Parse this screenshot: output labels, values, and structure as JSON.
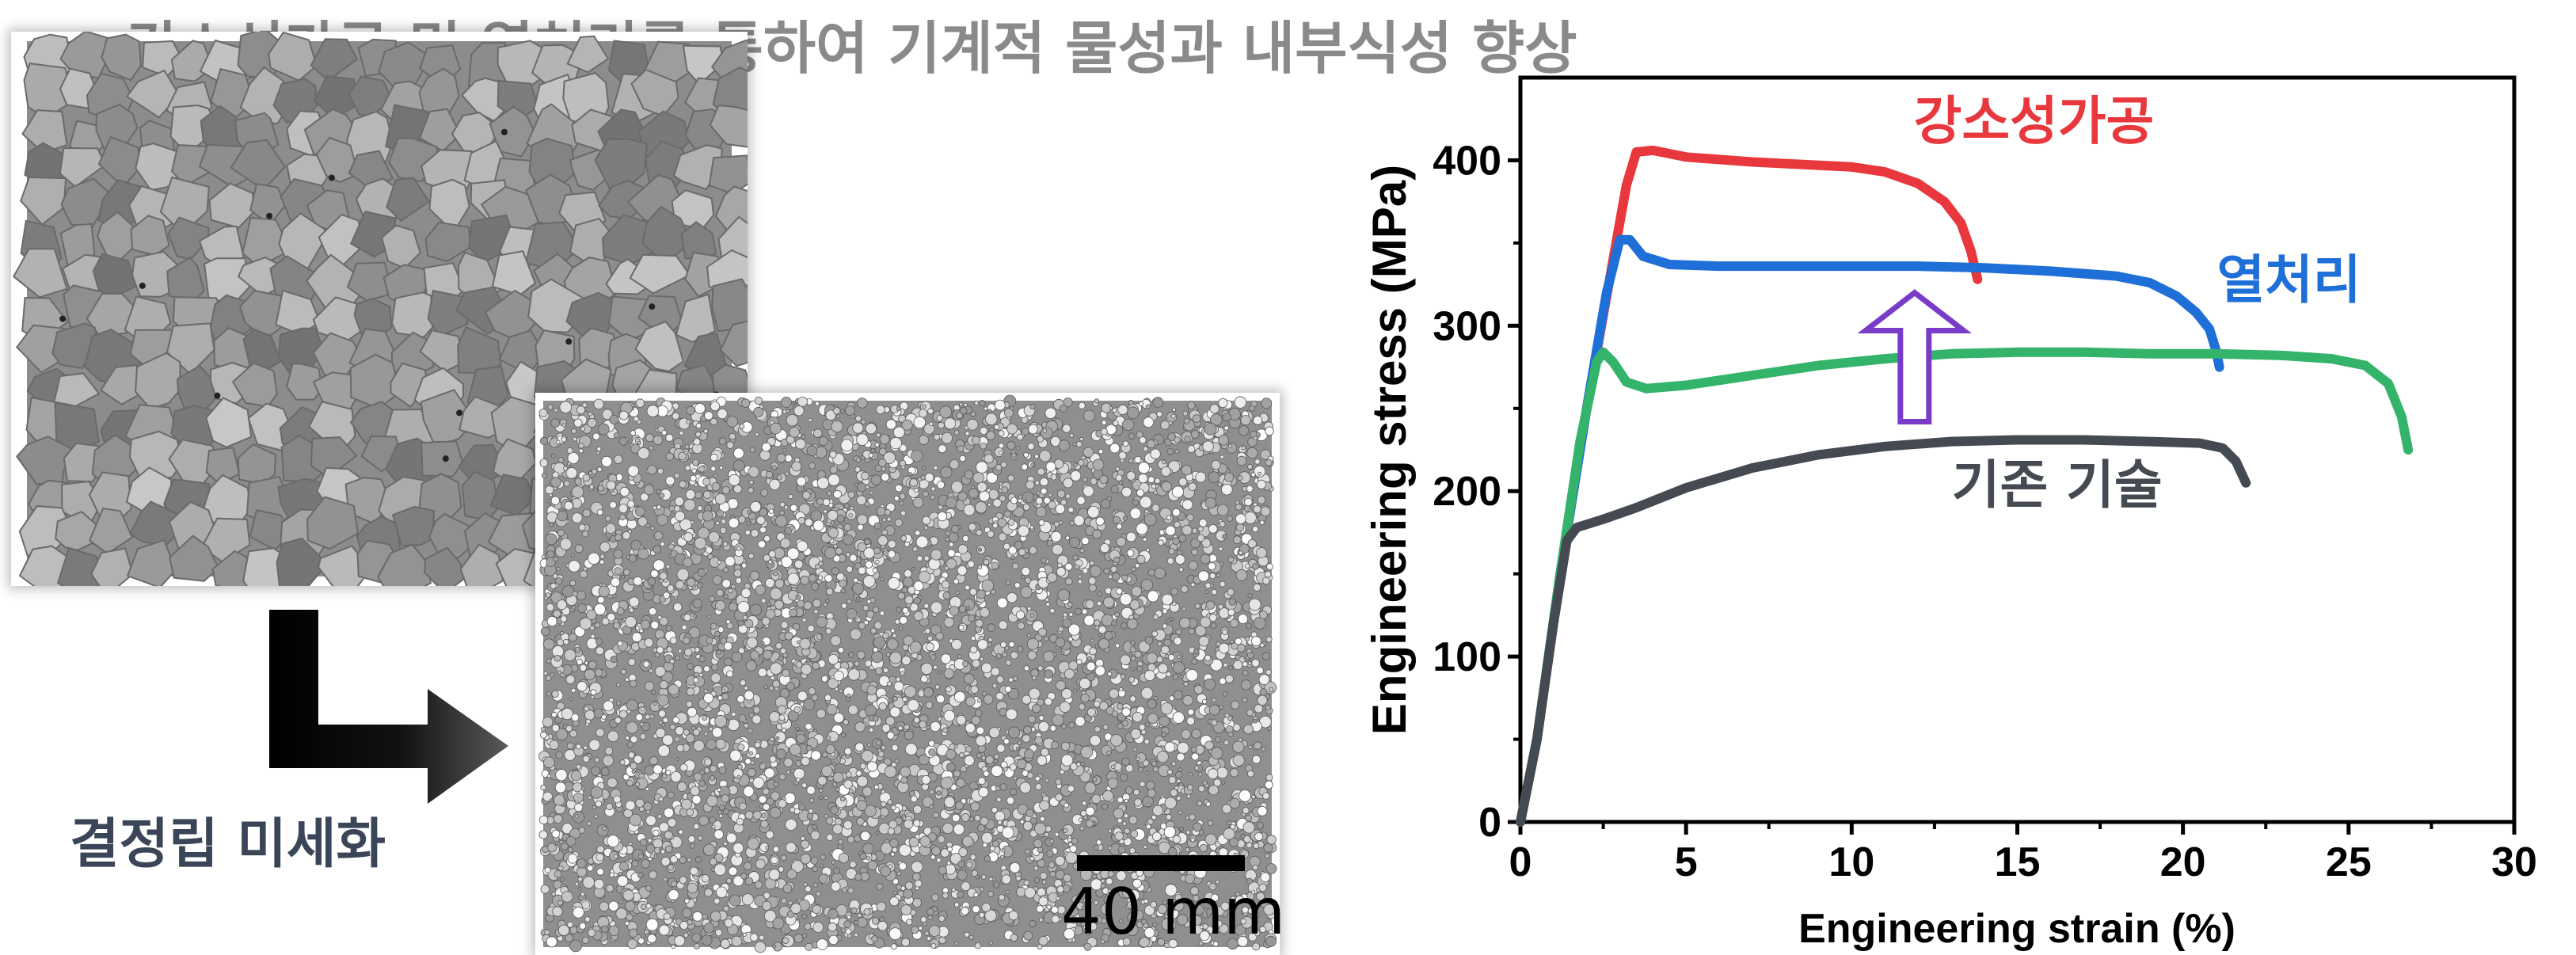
{
  "headline": "강소성가공 및 열처리를 통하여 기계적 물성과 내부식성 향상",
  "left_panel": {
    "refine_label": "결정립 미세화",
    "scale_bar_label": "40 mm"
  },
  "colors": {
    "headline": "#8a8a8a",
    "refine_label": "#3a4657",
    "spd": "#e8383d",
    "heat": "#1f6fd8",
    "mid": "#34b36a",
    "base": "#454a52",
    "up_arrow": "#7a3cc8"
  },
  "chart_data": {
    "type": "line",
    "xlabel": "Engineering strain (%)",
    "ylabel": "Engineering stress (MPa)",
    "xlim": [
      0,
      30
    ],
    "ylim": [
      0,
      450
    ],
    "xticks": [
      0,
      5,
      10,
      15,
      20,
      25,
      30
    ],
    "yticks": [
      0,
      100,
      200,
      300,
      400
    ],
    "grid": false,
    "series": [
      {
        "name": "강소성가공",
        "color": "#e8383d",
        "points": [
          [
            0,
            0
          ],
          [
            0.5,
            50
          ],
          [
            1.2,
            150
          ],
          [
            2.0,
            250
          ],
          [
            2.8,
            340
          ],
          [
            3.2,
            385
          ],
          [
            3.5,
            405
          ],
          [
            4,
            406
          ],
          [
            5,
            402
          ],
          [
            7,
            399
          ],
          [
            9,
            397
          ],
          [
            10,
            396
          ],
          [
            11,
            393
          ],
          [
            12,
            386
          ],
          [
            12.8,
            375
          ],
          [
            13.3,
            362
          ],
          [
            13.6,
            345
          ],
          [
            13.8,
            328
          ]
        ]
      },
      {
        "name": "열처리",
        "color": "#1f6fd8",
        "points": [
          [
            0,
            0
          ],
          [
            0.5,
            50
          ],
          [
            1.2,
            150
          ],
          [
            2.0,
            250
          ],
          [
            2.6,
            320
          ],
          [
            3.0,
            352
          ],
          [
            3.3,
            352
          ],
          [
            3.7,
            342
          ],
          [
            4.5,
            337
          ],
          [
            6,
            336
          ],
          [
            8,
            336
          ],
          [
            10,
            336
          ],
          [
            12,
            336
          ],
          [
            14,
            335
          ],
          [
            16,
            333
          ],
          [
            18,
            330
          ],
          [
            19,
            326
          ],
          [
            19.8,
            318
          ],
          [
            20.4,
            308
          ],
          [
            20.8,
            298
          ],
          [
            21.0,
            285
          ],
          [
            21.1,
            275
          ]
        ]
      },
      {
        "name": "",
        "color": "#34b36a",
        "points": [
          [
            0,
            0
          ],
          [
            0.5,
            50
          ],
          [
            1.2,
            150
          ],
          [
            1.8,
            230
          ],
          [
            2.3,
            278
          ],
          [
            2.5,
            284
          ],
          [
            2.8,
            278
          ],
          [
            3.2,
            266
          ],
          [
            3.8,
            262
          ],
          [
            5,
            264
          ],
          [
            7,
            270
          ],
          [
            9,
            276
          ],
          [
            11,
            280
          ],
          [
            13,
            283
          ],
          [
            15,
            284
          ],
          [
            17,
            284
          ],
          [
            19,
            283
          ],
          [
            21,
            283
          ],
          [
            23,
            282
          ],
          [
            24.5,
            280
          ],
          [
            25.5,
            276
          ],
          [
            26.2,
            265
          ],
          [
            26.6,
            245
          ],
          [
            26.8,
            225
          ]
        ]
      },
      {
        "name": "기존 기술",
        "color": "#454a52",
        "points": [
          [
            0,
            0
          ],
          [
            0.5,
            50
          ],
          [
            1.0,
            120
          ],
          [
            1.4,
            170
          ],
          [
            1.7,
            178
          ],
          [
            2.5,
            183
          ],
          [
            3.5,
            190
          ],
          [
            5,
            202
          ],
          [
            7,
            214
          ],
          [
            9,
            222
          ],
          [
            11,
            227
          ],
          [
            13,
            230
          ],
          [
            15,
            231
          ],
          [
            17,
            231
          ],
          [
            19,
            230
          ],
          [
            20.5,
            229
          ],
          [
            21.2,
            226
          ],
          [
            21.6,
            218
          ],
          [
            21.9,
            205
          ]
        ]
      }
    ],
    "annotations": [
      {
        "text": "강소성가공",
        "x": 15.5,
        "y": 413,
        "color": "#e8383d"
      },
      {
        "text": "열처리",
        "x": 23.2,
        "y": 317,
        "color": "#1f6fd8"
      },
      {
        "text": "기존 기술",
        "x": 16.2,
        "y": 193,
        "color": "#454a52"
      }
    ],
    "up_arrow": {
      "x": 11.9,
      "y_from": 242,
      "y_to": 320,
      "color": "#7a3cc8"
    }
  }
}
